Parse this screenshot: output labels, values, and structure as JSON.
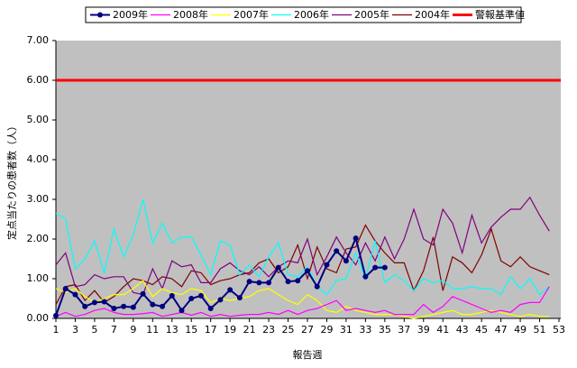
{
  "chart_data": {
    "type": "line",
    "y_label": "定点当たりの患者数（人）",
    "x_label": "報告週",
    "x": [
      1,
      2,
      3,
      4,
      5,
      6,
      7,
      8,
      9,
      10,
      11,
      12,
      13,
      14,
      15,
      16,
      17,
      18,
      19,
      20,
      21,
      22,
      23,
      24,
      25,
      26,
      27,
      28,
      29,
      30,
      31,
      32,
      33,
      34,
      35,
      36,
      37,
      38,
      39,
      40,
      41,
      42,
      43,
      44,
      45,
      46,
      47,
      48,
      49,
      50,
      51,
      52
    ],
    "series": [
      {
        "name": "2009年",
        "color": "#000080",
        "marker": true,
        "values": [
          0.07,
          0.75,
          0.6,
          0.3,
          0.4,
          0.42,
          0.25,
          0.3,
          0.28,
          0.62,
          0.35,
          0.3,
          0.57,
          0.2,
          0.5,
          0.57,
          0.25,
          0.47,
          0.72,
          0.52,
          0.93,
          0.9,
          0.9,
          1.28,
          0.93,
          0.95,
          1.2,
          0.8,
          1.35,
          1.7,
          1.45,
          2.02,
          1.05,
          1.28,
          1.28,
          null,
          null,
          null,
          null,
          null,
          null,
          null,
          null,
          null,
          null,
          null,
          null,
          null,
          null,
          null,
          null,
          null
        ]
      },
      {
        "name": "2008年",
        "color": "#ff00ff",
        "values": [
          0.05,
          0.15,
          0.05,
          0.1,
          0.2,
          0.25,
          0.15,
          0.1,
          0.1,
          0.12,
          0.15,
          0.05,
          0.1,
          0.15,
          0.08,
          0.15,
          0.05,
          0.1,
          0.05,
          0.08,
          0.1,
          0.1,
          0.15,
          0.1,
          0.2,
          0.1,
          0.2,
          0.25,
          0.35,
          0.45,
          0.2,
          0.25,
          0.2,
          0.15,
          0.2,
          0.1,
          0.1,
          0.1,
          0.35,
          0.15,
          0.3,
          0.55,
          0.45,
          0.35,
          0.25,
          0.15,
          0.2,
          0.15,
          0.35,
          0.4,
          0.4,
          0.8
        ]
      },
      {
        "name": "2007年",
        "color": "#ffff00",
        "values": [
          0.75,
          0.65,
          0.75,
          0.55,
          0.4,
          0.5,
          0.6,
          0.6,
          0.75,
          0.95,
          0.55,
          0.75,
          0.65,
          0.6,
          0.75,
          0.7,
          0.4,
          0.5,
          0.45,
          0.5,
          0.55,
          0.7,
          0.75,
          0.6,
          0.45,
          0.35,
          0.6,
          0.45,
          0.2,
          0.15,
          0.3,
          0.2,
          0.15,
          0.1,
          0.1,
          0.1,
          0.05,
          0.0,
          0.05,
          0.1,
          0.15,
          0.2,
          0.1,
          0.1,
          0.15,
          0.2,
          0.15,
          0.1,
          0.05,
          0.1,
          0.05,
          0.05
        ]
      },
      {
        "name": "2006年",
        "color": "#00ffff",
        "values": [
          2.65,
          2.5,
          1.25,
          1.5,
          1.95,
          1.15,
          2.25,
          1.55,
          2.1,
          3.0,
          1.9,
          2.4,
          1.9,
          2.05,
          2.05,
          1.6,
          1.1,
          1.95,
          1.85,
          1.1,
          1.35,
          1.05,
          1.55,
          1.9,
          1.1,
          1.05,
          1.3,
          0.8,
          0.6,
          0.95,
          1.0,
          1.65,
          1.0,
          1.95,
          0.9,
          1.1,
          0.95,
          0.7,
          1.0,
          0.9,
          0.95,
          0.75,
          0.75,
          0.8,
          0.75,
          0.75,
          0.6,
          1.05,
          0.75,
          1.0,
          0.6,
          0.8
        ]
      },
      {
        "name": "2005年",
        "color": "#800080",
        "values": [
          1.35,
          1.65,
          0.8,
          0.85,
          1.1,
          1.0,
          1.05,
          1.05,
          0.65,
          0.6,
          1.25,
          0.75,
          1.45,
          1.3,
          1.35,
          0.9,
          0.9,
          1.25,
          1.4,
          1.2,
          1.1,
          1.3,
          1.05,
          1.3,
          1.45,
          1.4,
          2.0,
          1.1,
          1.55,
          2.05,
          1.65,
          1.35,
          1.9,
          1.45,
          2.05,
          1.5,
          2.0,
          2.75,
          2.0,
          1.85,
          2.75,
          2.4,
          1.65,
          2.6,
          1.9,
          2.3,
          2.55,
          2.75,
          2.75,
          3.05,
          2.6,
          2.2
        ]
      },
      {
        "name": "2004年",
        "color": "#800000",
        "values": [
          0.35,
          0.8,
          0.85,
          0.45,
          0.7,
          0.4,
          0.55,
          0.8,
          1.0,
          0.95,
          0.85,
          1.05,
          1.0,
          0.8,
          1.2,
          1.15,
          0.85,
          0.95,
          1.0,
          1.1,
          1.15,
          1.4,
          1.5,
          1.15,
          1.3,
          1.85,
          1.0,
          1.8,
          1.25,
          1.15,
          1.75,
          1.8,
          2.35,
          1.95,
          1.65,
          1.4,
          1.4,
          0.7,
          1.2,
          2.05,
          0.7,
          1.55,
          1.4,
          1.15,
          1.6,
          2.25,
          1.45,
          1.3,
          1.55,
          1.3,
          1.2,
          1.1
        ]
      }
    ],
    "threshold": {
      "name": "警報基準値",
      "value": 6,
      "color": "#ff0000"
    },
    "xlim": [
      1,
      53
    ],
    "xticks": [
      1,
      3,
      5,
      7,
      9,
      11,
      13,
      15,
      17,
      19,
      21,
      23,
      25,
      27,
      29,
      31,
      33,
      35,
      37,
      39,
      41,
      43,
      45,
      47,
      49,
      51,
      53
    ],
    "ylim": [
      0,
      7
    ],
    "yticks": [
      {
        "value": 0,
        "label": "0.00"
      },
      {
        "value": 1,
        "label": "1.00"
      },
      {
        "value": 2,
        "label": "2.00"
      },
      {
        "value": 3,
        "label": "3.00"
      },
      {
        "value": 4,
        "label": "4.00"
      },
      {
        "value": 5,
        "label": "5.00"
      },
      {
        "value": 6,
        "label": "6.00"
      },
      {
        "value": 7,
        "label": "7.00"
      }
    ],
    "background": "#c0c0c0"
  }
}
